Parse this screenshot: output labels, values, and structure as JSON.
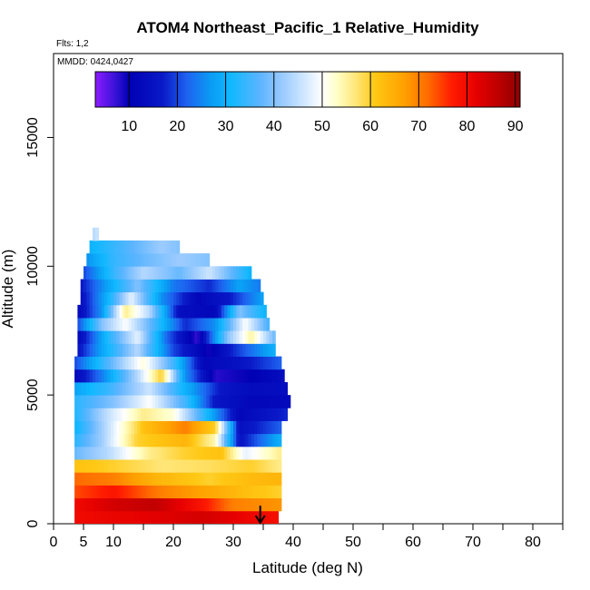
{
  "chart_data": {
    "type": "heatmap",
    "title": "ATOM4 Northeast_Pacific_1 Relative_Humidity",
    "flights_label": "Flts: 1,2",
    "dates_label": "MMDD: 0424,0427",
    "xlabel": "Latitude (deg N)",
    "ylabel": "Altitude (m)",
    "xlim": [
      0,
      85
    ],
    "ylim": [
      0,
      17500
    ],
    "x_major_ticks": [
      0,
      5,
      10,
      20,
      30,
      40,
      50,
      60,
      70,
      80
    ],
    "x_minor_ticks": [
      15,
      25,
      35,
      45,
      55,
      65,
      75,
      85
    ],
    "y_ticks": [
      0,
      5000,
      10000,
      15000
    ],
    "grid": false,
    "colorbar": {
      "placement": "top-inside",
      "range": [
        3,
        91
      ],
      "ticks": [
        10,
        20,
        30,
        40,
        50,
        60,
        70,
        80,
        90
      ],
      "colors": [
        {
          "v": 3,
          "c": "#8c1bff"
        },
        {
          "v": 7,
          "c": "#3b13d8"
        },
        {
          "v": 10,
          "c": "#0000b4"
        },
        {
          "v": 17,
          "c": "#0a1ac8"
        },
        {
          "v": 22,
          "c": "#1e63f0"
        },
        {
          "v": 27,
          "c": "#0a9cf4"
        },
        {
          "v": 31,
          "c": "#10b8ff"
        },
        {
          "v": 37,
          "c": "#5ab4ff"
        },
        {
          "v": 42,
          "c": "#9dccff"
        },
        {
          "v": 47,
          "c": "#d9ecff"
        },
        {
          "v": 50,
          "c": "#ffffff"
        },
        {
          "v": 53,
          "c": "#ffffc8"
        },
        {
          "v": 57,
          "c": "#ffe678"
        },
        {
          "v": 61,
          "c": "#ffc814"
        },
        {
          "v": 67,
          "c": "#ffa000"
        },
        {
          "v": 72,
          "c": "#ff6a00"
        },
        {
          "v": 77,
          "c": "#ff1a00"
        },
        {
          "v": 82,
          "c": "#e60000"
        },
        {
          "v": 87,
          "c": "#b80000"
        },
        {
          "v": 91,
          "c": "#8c0000"
        }
      ]
    },
    "bands": [
      {
        "alt": [
          0,
          500
        ],
        "lat": [
          3.5,
          37.5
        ],
        "knots": [
          [
            3.5,
            80
          ],
          [
            15,
            82
          ],
          [
            25,
            84
          ],
          [
            35,
            80
          ],
          [
            37.5,
            79
          ]
        ]
      },
      {
        "alt": [
          500,
          1000
        ],
        "lat": [
          3.5,
          38
        ],
        "knots": [
          [
            3.5,
            80
          ],
          [
            10,
            84
          ],
          [
            17,
            86
          ],
          [
            25,
            78
          ],
          [
            30,
            70
          ],
          [
            38,
            68
          ]
        ]
      },
      {
        "alt": [
          1000,
          1500
        ],
        "lat": [
          3.5,
          38
        ],
        "knots": [
          [
            3.5,
            74
          ],
          [
            10,
            78
          ],
          [
            18,
            70
          ],
          [
            26,
            66
          ],
          [
            33,
            62
          ],
          [
            38,
            60
          ]
        ]
      },
      {
        "alt": [
          1500,
          2000
        ],
        "lat": [
          3.5,
          38
        ],
        "knots": [
          [
            3.5,
            72
          ],
          [
            10,
            70
          ],
          [
            17,
            64
          ],
          [
            26,
            60
          ],
          [
            33,
            63
          ],
          [
            38,
            64
          ]
        ]
      },
      {
        "alt": [
          2000,
          2500
        ],
        "lat": [
          3.5,
          38
        ],
        "knots": [
          [
            3.5,
            62
          ],
          [
            10,
            60
          ],
          [
            18,
            57
          ],
          [
            26,
            58
          ],
          [
            33,
            60
          ],
          [
            38,
            56
          ]
        ]
      },
      {
        "alt": [
          2500,
          3000
        ],
        "lat": [
          3.5,
          38
        ],
        "knots": [
          [
            3.5,
            38
          ],
          [
            9,
            44
          ],
          [
            16,
            56
          ],
          [
            22,
            60
          ],
          [
            28,
            62
          ],
          [
            32,
            48
          ],
          [
            38,
            56
          ]
        ]
      },
      {
        "alt": [
          3000,
          3500
        ],
        "lat": [
          3.5,
          38
        ],
        "knots": [
          [
            3.5,
            33
          ],
          [
            8,
            42
          ],
          [
            14,
            60
          ],
          [
            22,
            64
          ],
          [
            27,
            54
          ],
          [
            31,
            15
          ],
          [
            38,
            30
          ]
        ]
      },
      {
        "alt": [
          3500,
          4000
        ],
        "lat": [
          3.5,
          38
        ],
        "knots": [
          [
            3.5,
            30
          ],
          [
            8,
            42
          ],
          [
            15,
            62
          ],
          [
            22,
            70
          ],
          [
            27,
            60
          ],
          [
            31,
            14
          ],
          [
            38,
            22
          ]
        ]
      },
      {
        "alt": [
          4000,
          4500
        ],
        "lat": [
          3.5,
          39
        ],
        "knots": [
          [
            3.5,
            32
          ],
          [
            9,
            45
          ],
          [
            15,
            56
          ],
          [
            20,
            52
          ],
          [
            26,
            30
          ],
          [
            31,
            12
          ],
          [
            39,
            18
          ]
        ]
      },
      {
        "alt": [
          4500,
          5000
        ],
        "lat": [
          3.5,
          39.5
        ],
        "knots": [
          [
            3.5,
            33
          ],
          [
            10,
            40
          ],
          [
            16,
            50
          ],
          [
            22,
            35
          ],
          [
            27,
            16
          ],
          [
            33,
            12
          ],
          [
            39.5,
            13
          ]
        ]
      },
      {
        "alt": [
          5000,
          5500
        ],
        "lat": [
          3.5,
          39
        ],
        "knots": [
          [
            3.5,
            28
          ],
          [
            9,
            34
          ],
          [
            16,
            46
          ],
          [
            22,
            30
          ],
          [
            28,
            16
          ],
          [
            33,
            13
          ],
          [
            39,
            14
          ]
        ]
      },
      {
        "alt": [
          5500,
          6000
        ],
        "lat": [
          3.5,
          38.5
        ],
        "knots": [
          [
            3.5,
            12
          ],
          [
            8,
            24
          ],
          [
            14,
            44
          ],
          [
            18,
            60
          ],
          [
            22,
            26
          ],
          [
            27,
            8
          ],
          [
            33,
            10
          ],
          [
            38.5,
            14
          ]
        ]
      },
      {
        "alt": [
          6000,
          6500
        ],
        "lat": [
          3.5,
          38
        ],
        "knots": [
          [
            3.5,
            20
          ],
          [
            9,
            36
          ],
          [
            15,
            52
          ],
          [
            20,
            35
          ],
          [
            25,
            12
          ],
          [
            31,
            15
          ],
          [
            38,
            22
          ]
        ]
      },
      {
        "alt": [
          6500,
          7000
        ],
        "lat": [
          4,
          37
        ],
        "knots": [
          [
            4,
            15
          ],
          [
            8,
            28
          ],
          [
            14,
            44
          ],
          [
            20,
            20
          ],
          [
            26,
            9
          ],
          [
            30,
            18
          ],
          [
            37,
            30
          ]
        ]
      },
      {
        "alt": [
          7000,
          7500
        ],
        "lat": [
          4,
          37
        ],
        "knots": [
          [
            4,
            12
          ],
          [
            9,
            32
          ],
          [
            14,
            48
          ],
          [
            19,
            22
          ],
          [
            24,
            7
          ],
          [
            29,
            40
          ],
          [
            33,
            55
          ],
          [
            37,
            38
          ]
        ]
      },
      {
        "alt": [
          7500,
          8000
        ],
        "lat": [
          4,
          36
        ],
        "knots": [
          [
            4,
            20
          ],
          [
            8,
            40
          ],
          [
            12,
            50
          ],
          [
            16,
            38
          ],
          [
            22,
            18
          ],
          [
            27,
            26
          ],
          [
            32,
            50
          ],
          [
            36,
            35
          ]
        ]
      },
      {
        "alt": [
          8000,
          8500
        ],
        "lat": [
          4,
          35.5
        ],
        "knots": [
          [
            4,
            12
          ],
          [
            8,
            26
          ],
          [
            12,
            56
          ],
          [
            16,
            44
          ],
          [
            21,
            14
          ],
          [
            27,
            12
          ],
          [
            31,
            40
          ],
          [
            35.5,
            30
          ]
        ]
      },
      {
        "alt": [
          8500,
          9000
        ],
        "lat": [
          4.5,
          35
        ],
        "knots": [
          [
            4.5,
            14
          ],
          [
            9,
            30
          ],
          [
            13,
            48
          ],
          [
            18,
            26
          ],
          [
            24,
            12
          ],
          [
            29,
            16
          ],
          [
            35,
            28
          ]
        ]
      },
      {
        "alt": [
          9000,
          9500
        ],
        "lat": [
          4.5,
          34.5
        ],
        "knots": [
          [
            4.5,
            16
          ],
          [
            9,
            28
          ],
          [
            14,
            40
          ],
          [
            20,
            24
          ],
          [
            26,
            18
          ],
          [
            31,
            28
          ],
          [
            34.5,
            24
          ]
        ]
      },
      {
        "alt": [
          9500,
          10000
        ],
        "lat": [
          5,
          33
        ],
        "knots": [
          [
            5,
            20
          ],
          [
            10,
            34
          ],
          [
            15,
            44
          ],
          [
            21,
            38
          ],
          [
            26,
            46
          ],
          [
            33,
            30
          ]
        ]
      },
      {
        "alt": [
          10000,
          10500
        ],
        "lat": [
          5.5,
          26
        ],
        "knots": [
          [
            5.5,
            26
          ],
          [
            10,
            34
          ],
          [
            15,
            38
          ],
          [
            21,
            42
          ],
          [
            26,
            40
          ]
        ]
      },
      {
        "alt": [
          10500,
          11000
        ],
        "lat": [
          6,
          21
        ],
        "knots": [
          [
            6,
            30
          ],
          [
            12,
            36
          ],
          [
            18,
            42
          ],
          [
            21,
            40
          ]
        ]
      },
      {
        "alt": [
          11000,
          11500
        ],
        "lat": [
          6.5,
          7.5
        ],
        "knots": [
          [
            6.5,
            44
          ],
          [
            7.5,
            46
          ]
        ]
      }
    ],
    "markers": [
      {
        "type": "arrow",
        "lat": 34.5,
        "alt_from": 700,
        "alt_to": 0
      }
    ]
  }
}
